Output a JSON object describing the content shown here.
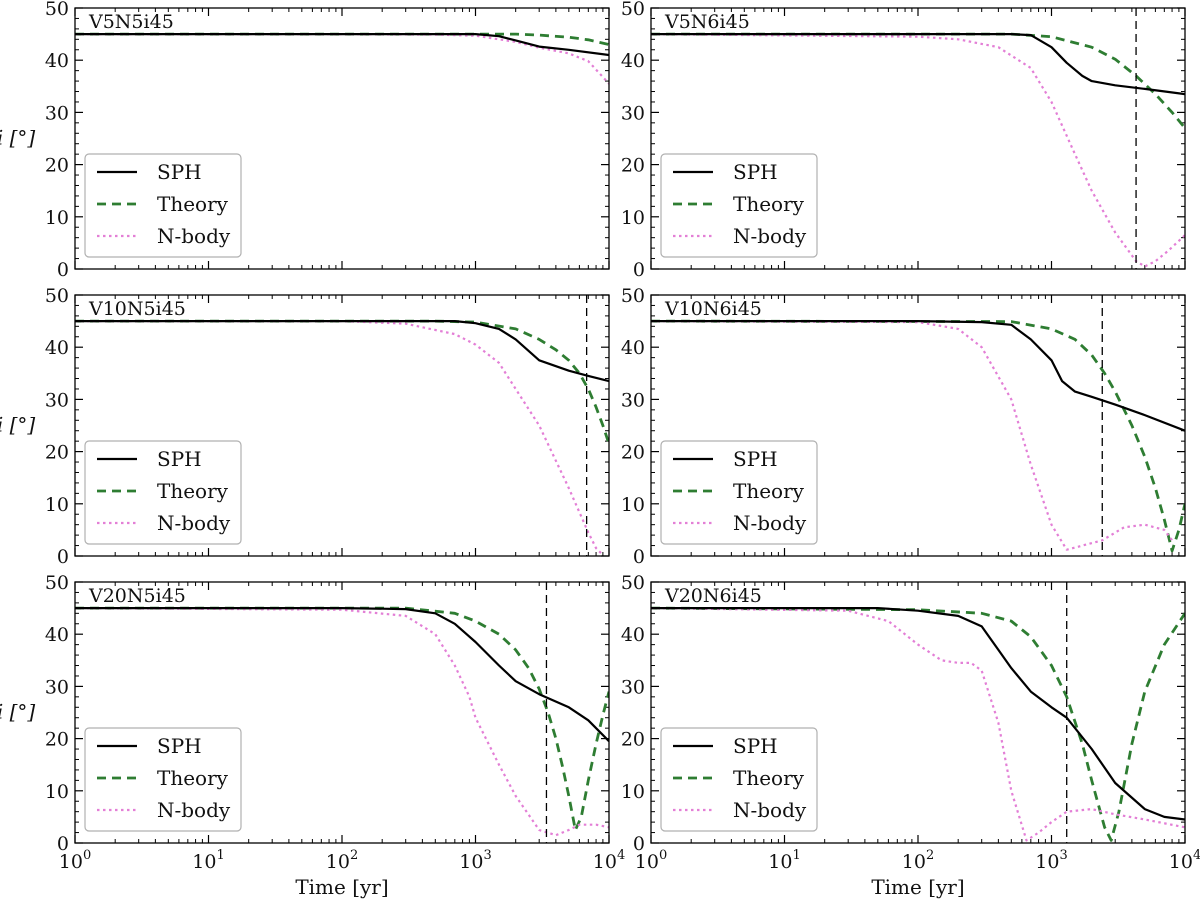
{
  "figure": {
    "colors": {
      "sph": "#000000",
      "theory": "#2e7d32",
      "nbody": "#e37fd6",
      "marker": "#000000",
      "frame": "#000000",
      "legend_border": "#b0b0b0"
    }
  },
  "chart_data": [
    {
      "type": "line",
      "title": "V5N5i45",
      "xscale": "log",
      "xlim": [
        1,
        10000
      ],
      "ylim": [
        0,
        50
      ],
      "xlabel": "",
      "ylabel": "i [°]",
      "yticks": [
        0,
        10,
        20,
        30,
        40,
        50
      ],
      "xticks": [
        1,
        10,
        100,
        1000,
        10000
      ],
      "legend": {
        "position": "bottom-left",
        "entries": [
          "SPH",
          "Theory",
          "N-body"
        ]
      },
      "vline": null,
      "series": [
        {
          "name": "SPH",
          "style": "solid",
          "x": [
            1,
            100,
            500,
            1000,
            1500,
            2000,
            3000,
            5000,
            10000
          ],
          "y": [
            45,
            45,
            45,
            45,
            44.6,
            43.8,
            42.6,
            42,
            41
          ]
        },
        {
          "name": "Theory",
          "style": "dashed",
          "x": [
            1,
            100,
            1000,
            2000,
            3000,
            5000,
            7000,
            10000
          ],
          "y": [
            45,
            45,
            45,
            45,
            44.8,
            44.4,
            43.9,
            43
          ]
        },
        {
          "name": "N-body",
          "style": "dotted",
          "x": [
            1,
            100,
            500,
            1000,
            2000,
            3000,
            5000,
            7000,
            10000
          ],
          "y": [
            45,
            45,
            44.9,
            44.7,
            43.5,
            42.4,
            41.3,
            39.8,
            35.5
          ]
        }
      ]
    },
    {
      "type": "line",
      "title": "V5N6i45",
      "xscale": "log",
      "xlim": [
        1,
        10000
      ],
      "ylim": [
        0,
        50
      ],
      "xlabel": "",
      "ylabel": "",
      "yticks": [
        0,
        10,
        20,
        30,
        40,
        50
      ],
      "xticks": [
        1,
        10,
        100,
        1000,
        10000
      ],
      "legend": {
        "position": "bottom-left",
        "entries": [
          "SPH",
          "Theory",
          "N-body"
        ]
      },
      "vline": 4300,
      "series": [
        {
          "name": "SPH",
          "style": "solid",
          "x": [
            1,
            100,
            300,
            500,
            700,
            1000,
            1300,
            1700,
            2000,
            3000,
            5000,
            10000
          ],
          "y": [
            45,
            45,
            45,
            45,
            44.8,
            42.5,
            39.5,
            37,
            36,
            35.2,
            34.5,
            33.5
          ]
        },
        {
          "name": "Theory",
          "style": "dashed",
          "x": [
            1,
            500,
            1000,
            2000,
            3000,
            4300,
            6000,
            8000,
            10000
          ],
          "y": [
            45,
            45,
            44.5,
            42.5,
            40.2,
            37,
            33.5,
            30,
            27
          ]
        },
        {
          "name": "N-body",
          "style": "dotted",
          "x": [
            1,
            100,
            200,
            400,
            700,
            1000,
            1500,
            2000,
            3000,
            4300,
            5000,
            6000,
            7500,
            10000
          ],
          "y": [
            45,
            44.5,
            44,
            42.5,
            38.5,
            32,
            22,
            15,
            7,
            1.5,
            0.5,
            1.5,
            3.5,
            6.5
          ]
        }
      ]
    },
    {
      "type": "line",
      "title": "V10N5i45",
      "xscale": "log",
      "xlim": [
        1,
        10000
      ],
      "ylim": [
        0,
        50
      ],
      "xlabel": "",
      "ylabel": "i [°]",
      "yticks": [
        0,
        10,
        20,
        30,
        40,
        50
      ],
      "xticks": [
        1,
        10,
        100,
        1000,
        10000
      ],
      "legend": {
        "position": "bottom-left",
        "entries": [
          "SPH",
          "Theory",
          "N-body"
        ]
      },
      "vline": 6800,
      "series": [
        {
          "name": "SPH",
          "style": "solid",
          "x": [
            1,
            100,
            700,
            1000,
            1500,
            2000,
            3000,
            5000,
            7000,
            10000
          ],
          "y": [
            45,
            45,
            45,
            44.6,
            43.5,
            41.5,
            37.5,
            35.5,
            34.5,
            33.5
          ]
        },
        {
          "name": "Theory",
          "style": "dashed",
          "x": [
            1,
            500,
            1000,
            2000,
            3000,
            4000,
            5000,
            6000,
            7000,
            8000,
            9000,
            10000
          ],
          "y": [
            45,
            45,
            44.8,
            43.5,
            41.5,
            39.5,
            37.5,
            35,
            32,
            28.5,
            25,
            21.5
          ]
        },
        {
          "name": "N-body",
          "style": "dotted",
          "x": [
            1,
            100,
            300,
            700,
            1000,
            1500,
            2000,
            3000,
            5000,
            7000,
            8000,
            9000
          ],
          "y": [
            45,
            45,
            44.5,
            42.5,
            40.5,
            37,
            32,
            25,
            13,
            4.5,
            1.5,
            0.2
          ]
        }
      ]
    },
    {
      "type": "line",
      "title": "V10N6i45",
      "xscale": "log",
      "xlim": [
        1,
        10000
      ],
      "ylim": [
        0,
        50
      ],
      "xlabel": "",
      "ylabel": "",
      "yticks": [
        0,
        10,
        20,
        30,
        40,
        50
      ],
      "xticks": [
        1,
        10,
        100,
        1000,
        10000
      ],
      "legend": {
        "position": "bottom-left",
        "entries": [
          "SPH",
          "Theory",
          "N-body"
        ]
      },
      "vline": 2400,
      "series": [
        {
          "name": "SPH",
          "style": "solid",
          "x": [
            1,
            100,
            300,
            500,
            700,
            1000,
            1200,
            1500,
            2000,
            3000,
            5000,
            10000
          ],
          "y": [
            45,
            45,
            44.8,
            44.3,
            41.5,
            37.5,
            33.5,
            31.5,
            30.5,
            29,
            27,
            24
          ]
        },
        {
          "name": "Theory",
          "style": "dashed",
          "x": [
            1,
            500,
            1000,
            1500,
            2000,
            2500,
            3000,
            4000,
            5000,
            6000,
            7000,
            8000,
            9000,
            10000
          ],
          "y": [
            45,
            44.9,
            43.5,
            41.5,
            38.5,
            35,
            31.5,
            25,
            19,
            13,
            7,
            1,
            5,
            10
          ]
        },
        {
          "name": "N-body",
          "style": "dotted",
          "x": [
            1,
            100,
            200,
            300,
            500,
            700,
            1000,
            1300,
            1700,
            2400,
            3500,
            5000,
            7000,
            8000
          ],
          "y": [
            45,
            44.8,
            43.5,
            40,
            30,
            17.5,
            6,
            1.2,
            2,
            3,
            5.5,
            6,
            5,
            3
          ]
        }
      ]
    },
    {
      "type": "line",
      "title": "V20N5i45",
      "xscale": "log",
      "xlim": [
        1,
        10000
      ],
      "ylim": [
        0,
        50
      ],
      "xlabel": "Time [yr]",
      "ylabel": "i [°]",
      "yticks": [
        0,
        10,
        20,
        30,
        40,
        50
      ],
      "xticks": [
        1,
        10,
        100,
        1000,
        10000
      ],
      "legend": {
        "position": "bottom-left",
        "entries": [
          "SPH",
          "Theory",
          "N-body"
        ]
      },
      "vline": 3400,
      "series": [
        {
          "name": "SPH",
          "style": "solid",
          "x": [
            1,
            100,
            300,
            500,
            700,
            1000,
            1500,
            2000,
            3000,
            5000,
            7000,
            10000
          ],
          "y": [
            45,
            45,
            44.8,
            44,
            42,
            38.5,
            34,
            31,
            28.5,
            26,
            23.5,
            19.5
          ]
        },
        {
          "name": "Theory",
          "style": "dashed",
          "x": [
            1,
            300,
            700,
            1000,
            1500,
            2000,
            2500,
            3000,
            3500,
            4000,
            4500,
            5000,
            5600,
            6200,
            7000,
            8000,
            9000,
            10000
          ],
          "y": [
            45,
            45,
            44,
            42.5,
            40,
            37,
            33.5,
            29.5,
            25,
            20,
            14.5,
            9,
            2.5,
            5,
            12,
            19,
            24.5,
            29
          ]
        },
        {
          "name": "N-body",
          "style": "dotted",
          "x": [
            1,
            100,
            300,
            500,
            700,
            900,
            1000,
            1500,
            2000,
            3000,
            4000,
            5000,
            6000,
            8000,
            10000
          ],
          "y": [
            45,
            44.7,
            43.5,
            40,
            34,
            28,
            24,
            15,
            9,
            2.5,
            1.5,
            2.5,
            3.5,
            3.5,
            3
          ]
        }
      ]
    },
    {
      "type": "line",
      "title": "V20N6i45",
      "xscale": "log",
      "xlim": [
        1,
        10000
      ],
      "ylim": [
        0,
        50
      ],
      "xlabel": "Time [yr]",
      "ylabel": "",
      "yticks": [
        0,
        10,
        20,
        30,
        40,
        50
      ],
      "xticks": [
        1,
        10,
        100,
        1000,
        10000
      ],
      "legend": {
        "position": "bottom-left",
        "entries": [
          "SPH",
          "Theory",
          "N-body"
        ]
      },
      "vline": 1300,
      "series": [
        {
          "name": "SPH",
          "style": "solid",
          "x": [
            1,
            50,
            100,
            200,
            300,
            400,
            500,
            700,
            1000,
            1300,
            2000,
            3000,
            5000,
            7000,
            10000
          ],
          "y": [
            45,
            45,
            44.5,
            43.5,
            41.5,
            37,
            33.5,
            29,
            26,
            24,
            18,
            11.5,
            6.5,
            5,
            4.5
          ]
        },
        {
          "name": "Theory",
          "style": "dashed",
          "x": [
            1,
            100,
            300,
            500,
            700,
            1000,
            1300,
            1700,
            2000,
            2500,
            2800,
            3200,
            4000,
            5000,
            7000,
            10000
          ],
          "y": [
            45,
            44.7,
            44,
            42.5,
            39.5,
            34,
            28,
            19,
            12,
            3,
            0.5,
            6,
            19,
            29,
            38,
            44
          ]
        },
        {
          "name": "N-body",
          "style": "dotted",
          "x": [
            1,
            30,
            60,
            100,
            150,
            200,
            250,
            300,
            400,
            500,
            650,
            800,
            1000,
            1300,
            2000,
            3000,
            5000,
            10000
          ],
          "y": [
            45,
            44.5,
            42.5,
            38,
            35,
            34.5,
            34.5,
            33,
            23,
            10,
            0.5,
            2,
            4,
            6,
            6.5,
            5.5,
            4.5,
            3
          ]
        }
      ]
    }
  ]
}
